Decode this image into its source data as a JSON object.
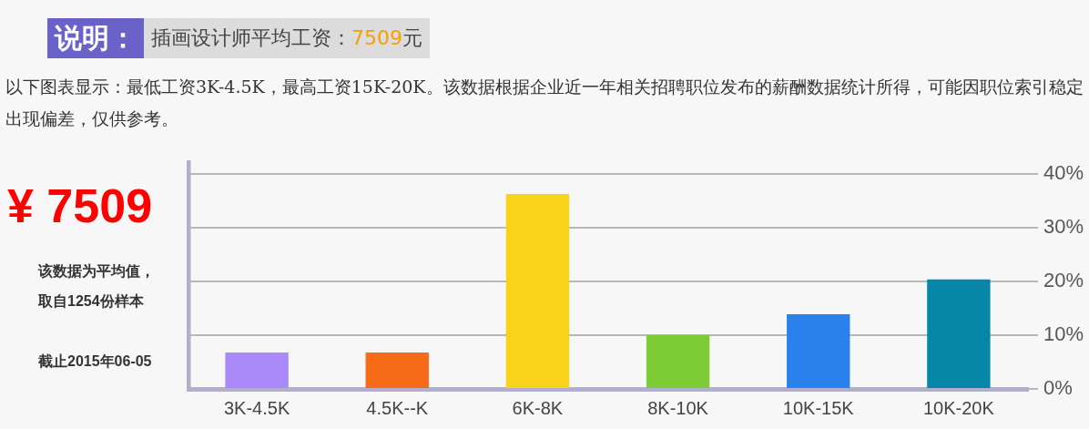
{
  "chart_data": {
    "type": "bar",
    "title": "说明：",
    "subtitle": "插画设计师平均工资：7509元",
    "annotations": [
      "以下图表显示：最低工资3K-4.5K，最高工资15K-20K。该数据根据企业近一年相关招聘职位发布的薪酬数据统计所得，可能因职位索引稳定出现偏差，仅供参考。",
      "¥ 7509",
      "该数据为平均值，",
      "取自1254份样本",
      "截止2015年06-05"
    ],
    "categories": [
      "3K-4.5K",
      "4.5K--K",
      "6K-8K",
      "8K-10K",
      "10K-15K",
      "10K-20K"
    ],
    "values": [
      6.8,
      6.8,
      36.3,
      10,
      13.9,
      20.4
    ],
    "colors": [
      "#a98af8",
      "#f76a17",
      "#f8d31a",
      "#7dcc36",
      "#2a80ec",
      "#0787a8"
    ],
    "ylim": [
      0,
      40
    ],
    "yticks": [
      {
        "value": 0,
        "label": "0%"
      },
      {
        "value": 10,
        "label": "10%"
      },
      {
        "value": 20,
        "label": "20%"
      },
      {
        "value": 30,
        "label": "30%"
      },
      {
        "value": 40,
        "label": "40%"
      }
    ],
    "grid": "y",
    "legend": false
  }
}
